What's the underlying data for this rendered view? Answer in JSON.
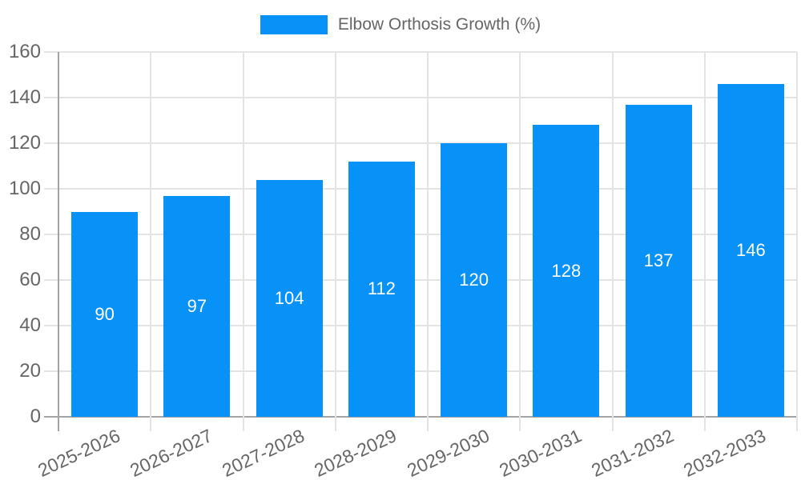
{
  "chart_data": {
    "type": "bar",
    "title": "Elbow Orthosis Growth (%)",
    "categories": [
      "2025-2026",
      "2026-2027",
      "2027-2028",
      "2028-2029",
      "2029-2030",
      "2030-2031",
      "2031-2032",
      "2032-2033"
    ],
    "series": [
      {
        "name": "Elbow Orthosis Growth (%)",
        "values": [
          90,
          97,
          104,
          112,
          120,
          128,
          137,
          146
        ]
      }
    ],
    "value_labels": [
      "90",
      "97",
      "104",
      "112",
      "120",
      "128",
      "137",
      "146"
    ],
    "xlabel": "",
    "ylabel": "",
    "ylim": [
      0,
      160
    ],
    "ytick_step": 20,
    "ytick_labels": [
      "0",
      "20",
      "40",
      "60",
      "80",
      "100",
      "120",
      "140",
      "160"
    ],
    "grid": true,
    "legend_position": "top-center",
    "x_label_rotation_deg": -25
  },
  "colors": {
    "bar": "#0892f8",
    "grid": "#e4e4e4",
    "axis": "#a3a3a3",
    "text": "#666666",
    "value_label": "#ffffff",
    "background": "#ffffff"
  }
}
